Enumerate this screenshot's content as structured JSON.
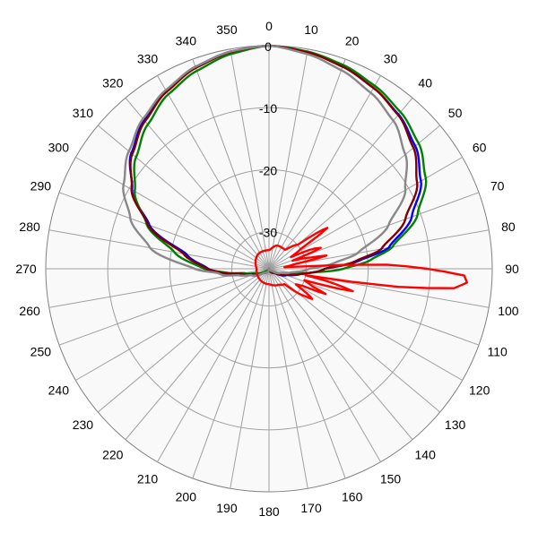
{
  "chart_data": {
    "type": "polar-line",
    "angle_ticks": [
      "0",
      "10",
      "20",
      "30",
      "40",
      "50",
      "60",
      "70",
      "80",
      "90",
      "100",
      "110",
      "120",
      "130",
      "140",
      "150",
      "160",
      "170",
      "180",
      "190",
      "200",
      "210",
      "220",
      "230",
      "240",
      "250",
      "260",
      "270",
      "280",
      "290",
      "300",
      "310",
      "320",
      "330",
      "340",
      "350"
    ],
    "radial_ticks": [
      "0",
      "-10",
      "-20",
      "-30"
    ],
    "r_min": -36,
    "r_max": 0,
    "angle_direction": "clockwise",
    "zero_at": "top",
    "grid": true,
    "series": [
      {
        "color": "#0000ff",
        "points": [
          [
            0,
            0
          ],
          [
            10,
            -0.5
          ],
          [
            20,
            -1.2
          ],
          [
            30,
            -2.3
          ],
          [
            40,
            -3.5
          ],
          [
            50,
            -5.2
          ],
          [
            60,
            -7.7
          ],
          [
            70,
            -11.5
          ],
          [
            80,
            -16.4
          ],
          [
            85,
            -21.5
          ],
          [
            90,
            -27
          ],
          [
            100,
            -31
          ],
          [
            110,
            -33
          ],
          [
            130,
            -35
          ],
          [
            180,
            -36
          ],
          [
            230,
            -35
          ],
          [
            250,
            -33
          ],
          [
            260,
            -31
          ],
          [
            265,
            -28.5
          ],
          [
            270,
            -26.2
          ],
          [
            280,
            -22.5
          ],
          [
            290,
            -15.5
          ],
          [
            300,
            -10.5
          ],
          [
            310,
            -7
          ],
          [
            320,
            -4.7
          ],
          [
            330,
            -2.8
          ],
          [
            340,
            -1.3
          ],
          [
            350,
            -0.4
          ],
          [
            360,
            0
          ]
        ]
      },
      {
        "color": "#008000",
        "points": [
          [
            0,
            0
          ],
          [
            10,
            -0.4
          ],
          [
            20,
            -1.0
          ],
          [
            30,
            -1.9
          ],
          [
            40,
            -3
          ],
          [
            50,
            -4.5
          ],
          [
            60,
            -6.8
          ],
          [
            70,
            -10.5
          ],
          [
            80,
            -15.8
          ],
          [
            85,
            -19.5
          ],
          [
            90,
            -24
          ],
          [
            95,
            -29
          ],
          [
            100,
            -32
          ],
          [
            110,
            -34
          ],
          [
            130,
            -35.5
          ],
          [
            180,
            -36
          ],
          [
            230,
            -35.5
          ],
          [
            250,
            -34
          ],
          [
            260,
            -32
          ],
          [
            265,
            -29
          ],
          [
            270,
            -25.5
          ],
          [
            280,
            -20.5
          ],
          [
            290,
            -15
          ],
          [
            300,
            -11
          ],
          [
            310,
            -8
          ],
          [
            320,
            -5.6
          ],
          [
            330,
            -3.5
          ],
          [
            340,
            -2
          ],
          [
            350,
            -0.8
          ],
          [
            360,
            0
          ]
        ]
      },
      {
        "color": "#800000",
        "points": [
          [
            0,
            0
          ],
          [
            10,
            -0.5
          ],
          [
            20,
            -1.3
          ],
          [
            30,
            -2.3
          ],
          [
            40,
            -3.6
          ],
          [
            50,
            -5.6
          ],
          [
            60,
            -8.4
          ],
          [
            70,
            -12.6
          ],
          [
            80,
            -17.6
          ],
          [
            85,
            -22
          ],
          [
            90,
            -27
          ],
          [
            100,
            -31
          ],
          [
            110,
            -33.5
          ],
          [
            130,
            -35
          ],
          [
            180,
            -36
          ],
          [
            230,
            -35
          ],
          [
            250,
            -33.5
          ],
          [
            260,
            -31.5
          ],
          [
            265,
            -28.5
          ],
          [
            270,
            -26
          ],
          [
            280,
            -22
          ],
          [
            290,
            -15.2
          ],
          [
            300,
            -10.4
          ],
          [
            310,
            -7.2
          ],
          [
            320,
            -4.9
          ],
          [
            330,
            -3
          ],
          [
            340,
            -1.5
          ],
          [
            350,
            -0.5
          ],
          [
            360,
            0
          ]
        ]
      },
      {
        "color": "#888888",
        "points": [
          [
            0,
            0
          ],
          [
            10,
            -0.8
          ],
          [
            20,
            -1.9
          ],
          [
            30,
            -3.2
          ],
          [
            40,
            -4.8
          ],
          [
            50,
            -7.3
          ],
          [
            60,
            -10.6
          ],
          [
            70,
            -15.5
          ],
          [
            80,
            -21.5
          ],
          [
            85,
            -25.5
          ],
          [
            90,
            -29.5
          ],
          [
            100,
            -32.5
          ],
          [
            110,
            -34
          ],
          [
            130,
            -35.5
          ],
          [
            180,
            -36
          ],
          [
            230,
            -35
          ],
          [
            250,
            -33
          ],
          [
            258,
            -31
          ],
          [
            262,
            -28.5
          ],
          [
            265,
            -27.8
          ],
          [
            270,
            -24
          ],
          [
            280,
            -16.5
          ],
          [
            290,
            -12.2
          ],
          [
            300,
            -8.9
          ],
          [
            310,
            -6.5
          ],
          [
            320,
            -4.4
          ],
          [
            330,
            -2.7
          ],
          [
            340,
            -1.3
          ],
          [
            350,
            -0.4
          ],
          [
            360,
            0
          ]
        ]
      },
      {
        "color": "#ff0000",
        "points": [
          [
            0,
            -33
          ],
          [
            20,
            -32
          ],
          [
            40,
            -32
          ],
          [
            50,
            -30
          ],
          [
            55,
            -24.5
          ],
          [
            58,
            -30
          ],
          [
            62,
            -32
          ],
          [
            66,
            -28
          ],
          [
            68,
            -27
          ],
          [
            71,
            -32
          ],
          [
            75,
            -29
          ],
          [
            77,
            -26.5
          ],
          [
            80,
            -32
          ],
          [
            84,
            -33.5
          ],
          [
            86,
            -31
          ],
          [
            88,
            -17
          ],
          [
            90,
            -10.5
          ],
          [
            92,
            -4.5
          ],
          [
            94,
            -4
          ],
          [
            96,
            -6
          ],
          [
            98,
            -15
          ],
          [
            100,
            -30
          ],
          [
            103,
            -25
          ],
          [
            105,
            -22
          ],
          [
            108,
            -30
          ],
          [
            112,
            -28.5
          ],
          [
            114,
            -26
          ],
          [
            117,
            -30
          ],
          [
            120,
            -31
          ],
          [
            125,
            -27.5
          ],
          [
            128,
            -29
          ],
          [
            135,
            -32.5
          ],
          [
            150,
            -33
          ],
          [
            180,
            -33.5
          ],
          [
            270,
            -34
          ],
          [
            330,
            -33
          ],
          [
            360,
            -33
          ]
        ]
      }
    ]
  }
}
